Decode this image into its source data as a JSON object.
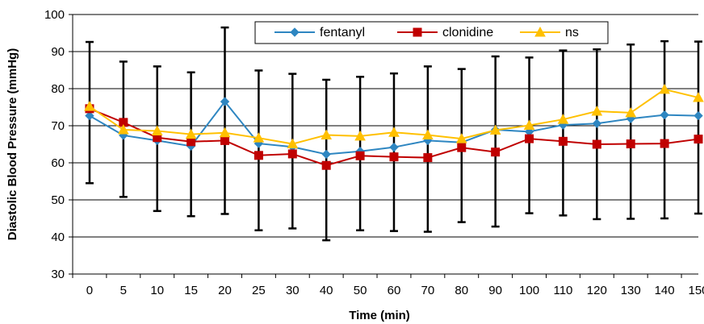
{
  "chart_data": {
    "type": "line",
    "title": "",
    "xlabel": "Time (min)",
    "ylabel": "Diastolic Blood Pressure (mmHg)",
    "ylim": [
      30,
      100
    ],
    "yticks": [
      "30",
      "40",
      "50",
      "60",
      "70",
      "80",
      "90",
      "100"
    ],
    "grid": "horizontal",
    "legend": "top-center",
    "categories": [
      "0",
      "5",
      "10",
      "15",
      "20",
      "25",
      "30",
      "40",
      "50",
      "60",
      "70",
      "80",
      "90",
      "100",
      "110",
      "120",
      "130",
      "140",
      "150"
    ],
    "series": [
      {
        "name": "fentanyl",
        "color": "#2e86c1",
        "marker": "diamond",
        "values": [
          72.7,
          67.4,
          66.0,
          64.5,
          76.5,
          65.2,
          64.3,
          62.3,
          63.1,
          64.2,
          66.0,
          65.5,
          68.9,
          68.4,
          70.2,
          70.6,
          71.9,
          72.9,
          72.7
        ],
        "error_low": [
          54.5,
          50.8,
          47.0,
          45.6,
          46.2,
          41.8,
          42.3,
          39.1,
          41.8,
          41.6,
          41.4,
          44.0,
          42.8,
          46.4,
          45.8,
          44.8,
          44.9,
          45.0,
          46.3
        ],
        "error_high": [
          92.6,
          87.3,
          86.0,
          84.4,
          96.5,
          84.9,
          84.0,
          82.4,
          83.2,
          84.1,
          86.0,
          85.3,
          88.7,
          88.4,
          90.3,
          90.6,
          91.9,
          92.8,
          92.7
        ]
      },
      {
        "name": "clonidine",
        "color": "#c00000",
        "marker": "square",
        "values": [
          74.6,
          70.9,
          66.8,
          65.7,
          66.0,
          62.0,
          62.4,
          59.3,
          61.9,
          61.6,
          61.4,
          64.1,
          62.9,
          66.5,
          65.8,
          65.0,
          65.1,
          65.2,
          66.4
        ]
      },
      {
        "name": "ns",
        "color": "#ffc000",
        "marker": "triangle",
        "values": [
          75.2,
          68.9,
          68.6,
          67.7,
          68.1,
          66.7,
          65.1,
          67.5,
          67.2,
          68.2,
          67.5,
          66.5,
          68.8,
          70.1,
          71.7,
          73.9,
          73.5,
          79.8,
          77.6
        ]
      }
    ]
  }
}
